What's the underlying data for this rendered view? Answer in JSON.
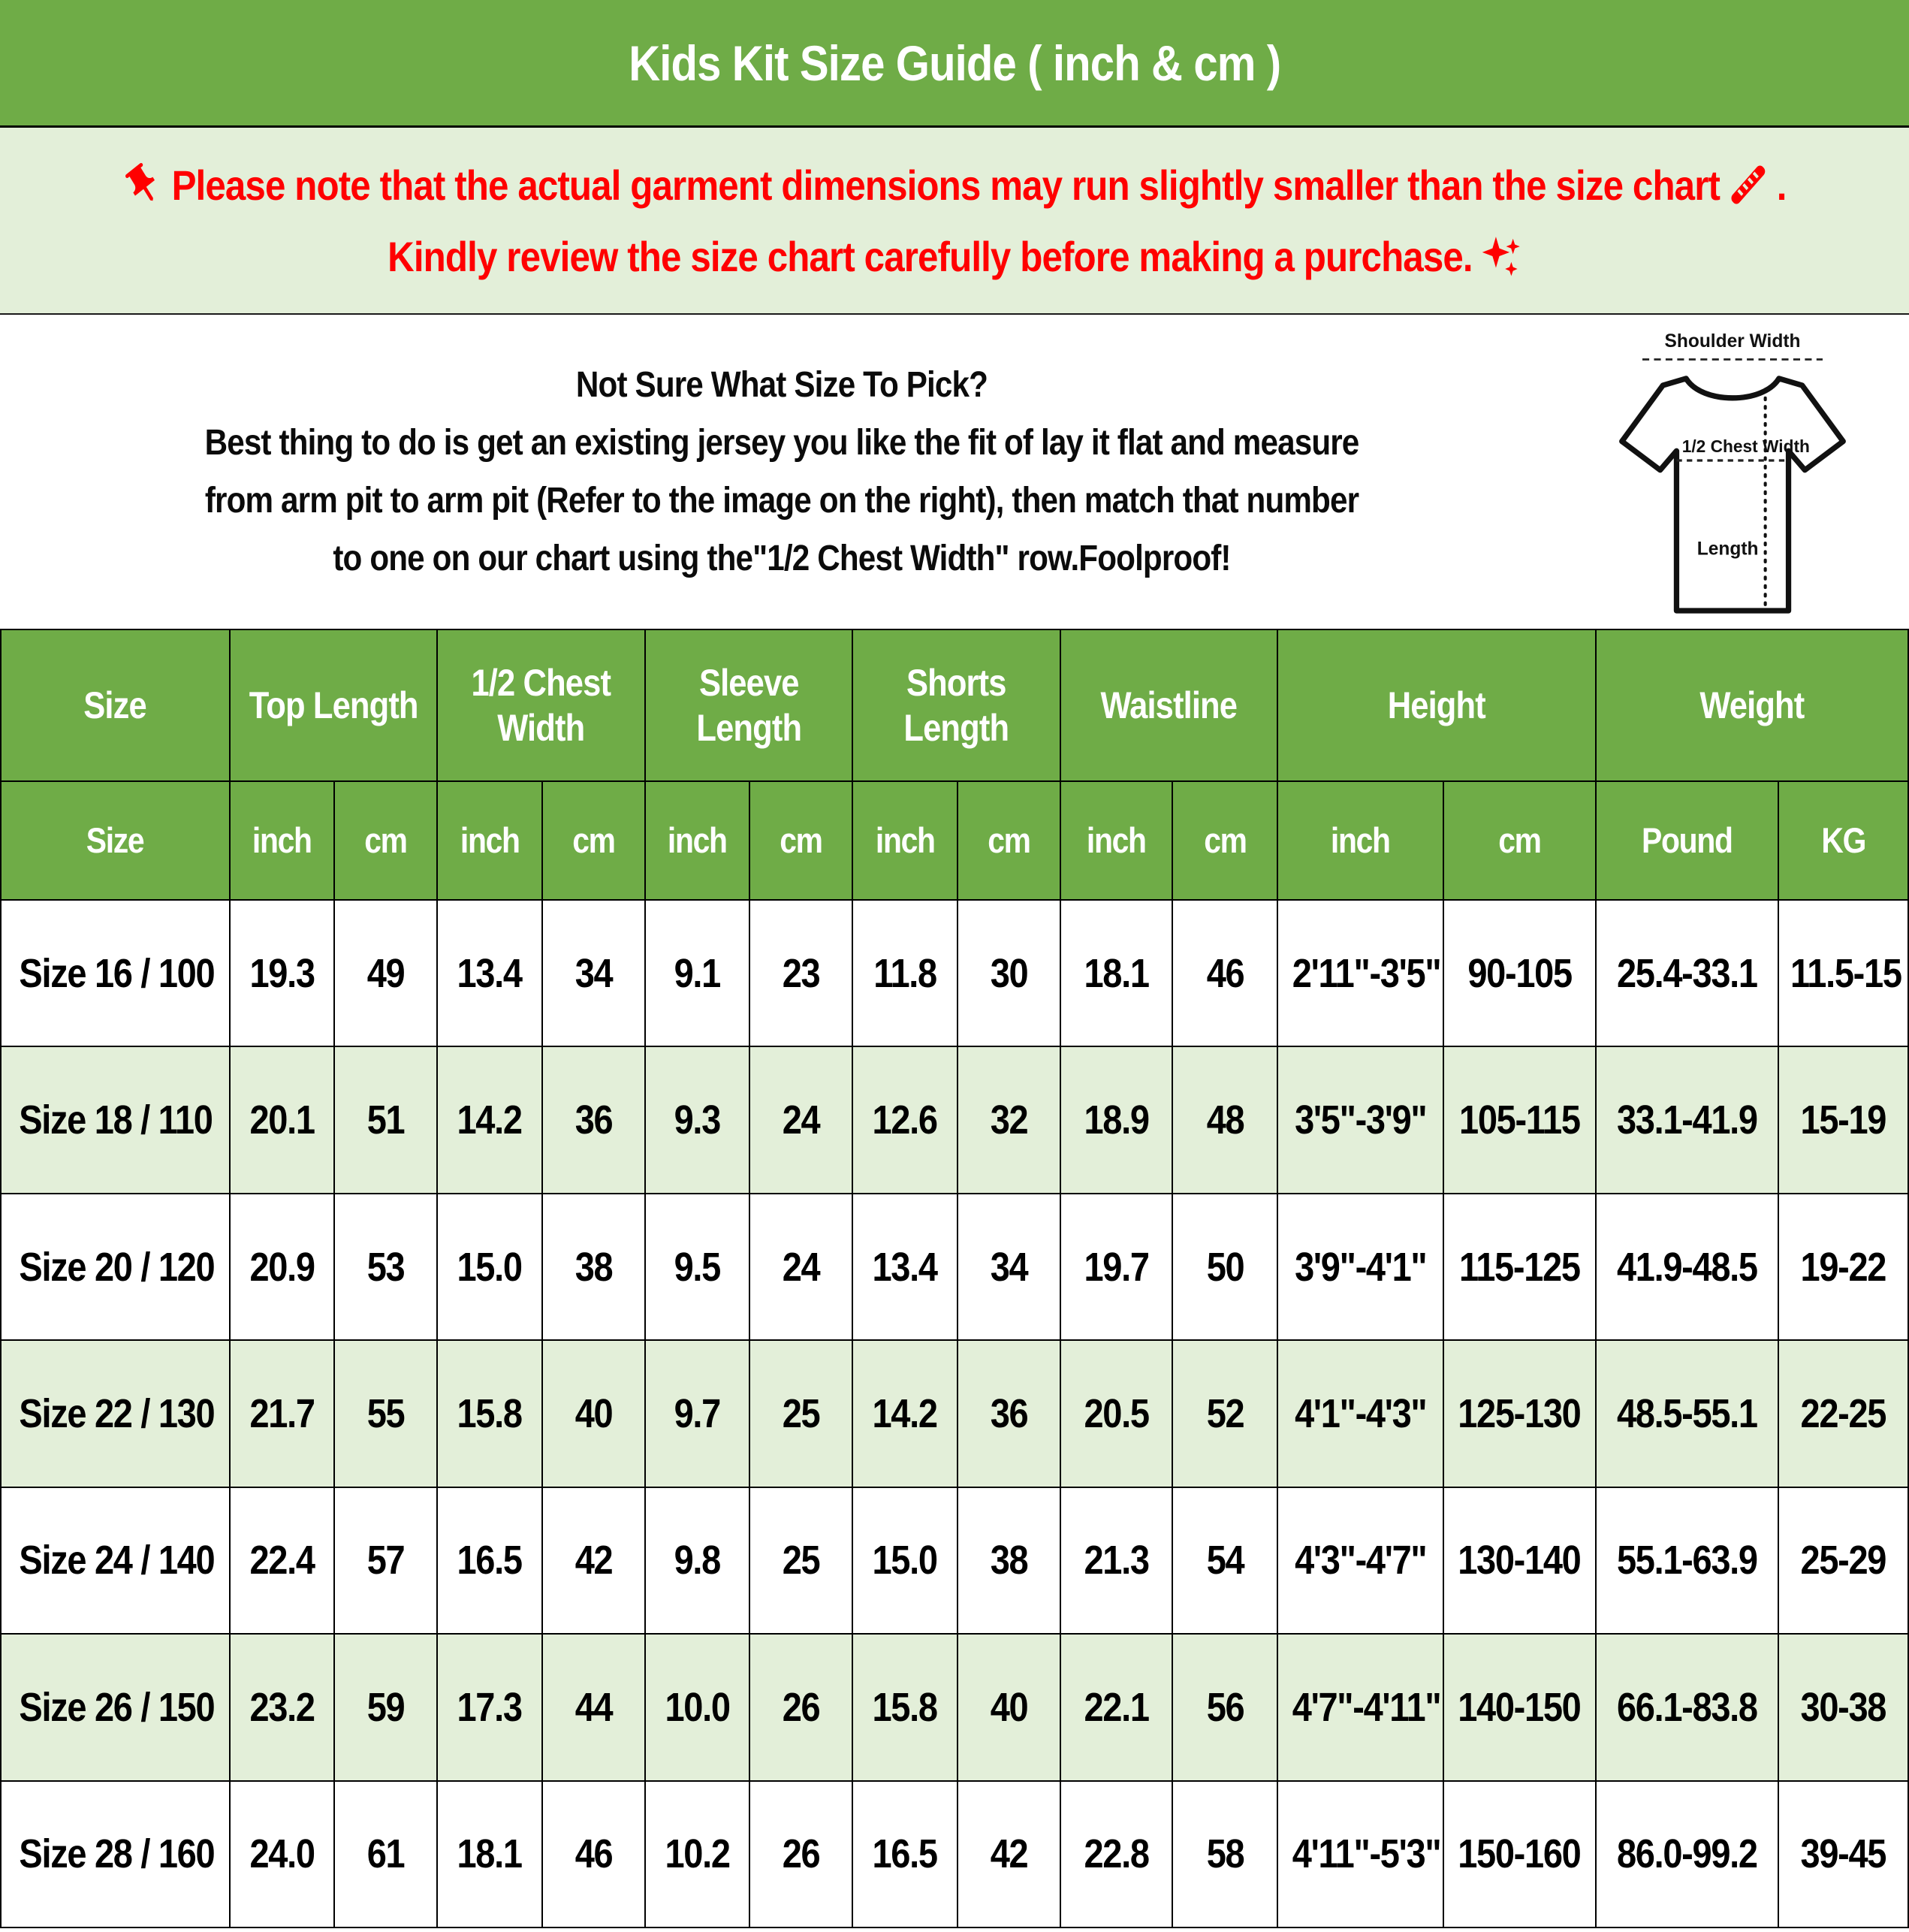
{
  "title": "Kids Kit Size Guide ( inch & cm )",
  "colors": {
    "header_green": "#6FAC47",
    "light_green": "#E3EFD9",
    "alert_red": "#FF0000",
    "text_black": "#000000",
    "white": "#FFFFFF"
  },
  "notice": {
    "line1": "Please note that the actual garment dimensions may run slightly smaller than the size chart",
    "line1_end": ".",
    "line2": "Kindly review the size chart carefully before making a purchase.",
    "icons": {
      "pin": "pushpin-icon",
      "ruler": "ruler-icon",
      "sparkles": "sparkles-icon"
    }
  },
  "size_help": {
    "heading": "Not Sure What Size To Pick?",
    "line1": "Best thing to do is get an existing jersey you like the fit of lay it flat and measure",
    "line2": "from arm pit to arm pit (Refer to the image on the right), then match that number",
    "line3": "to one on our chart using the\"1/2 Chest Width\" row.Foolproof!"
  },
  "diagram": {
    "shoulder_label": "Shoulder Width",
    "chest_label": "1/2 Chest Width",
    "length_label": "Length"
  },
  "table": {
    "groups": [
      {
        "label": "Size",
        "span": 1
      },
      {
        "label": "Top Length",
        "span": 2
      },
      {
        "label": "1/2 Chest Width",
        "span": 2
      },
      {
        "label": "Sleeve Length",
        "span": 2
      },
      {
        "label": "Shorts Length",
        "span": 2
      },
      {
        "label": "Waistline",
        "span": 2
      },
      {
        "label": "Height",
        "span": 2
      },
      {
        "label": "Weight",
        "span": 2
      }
    ],
    "subheaders": [
      "Size",
      "inch",
      "cm",
      "inch",
      "cm",
      "inch",
      "cm",
      "inch",
      "cm",
      "inch",
      "cm",
      "inch",
      "cm",
      "Pound",
      "KG"
    ],
    "rows": [
      [
        "Size 16 / 100",
        "19.3",
        "49",
        "13.4",
        "34",
        "9.1",
        "23",
        "11.8",
        "30",
        "18.1",
        "46",
        "2'11\"-3'5\"",
        "90-105",
        "25.4-33.1",
        "11.5-15"
      ],
      [
        "Size 18 / 110",
        "20.1",
        "51",
        "14.2",
        "36",
        "9.3",
        "24",
        "12.6",
        "32",
        "18.9",
        "48",
        "3'5\"-3'9\"",
        "105-115",
        "33.1-41.9",
        "15-19"
      ],
      [
        "Size 20 / 120",
        "20.9",
        "53",
        "15.0",
        "38",
        "9.5",
        "24",
        "13.4",
        "34",
        "19.7",
        "50",
        "3'9\"-4'1\"",
        "115-125",
        "41.9-48.5",
        "19-22"
      ],
      [
        "Size 22 / 130",
        "21.7",
        "55",
        "15.8",
        "40",
        "9.7",
        "25",
        "14.2",
        "36",
        "20.5",
        "52",
        "4'1\"-4'3\"",
        "125-130",
        "48.5-55.1",
        "22-25"
      ],
      [
        "Size 24 / 140",
        "22.4",
        "57",
        "16.5",
        "42",
        "9.8",
        "25",
        "15.0",
        "38",
        "21.3",
        "54",
        "4'3\"-4'7\"",
        "130-140",
        "55.1-63.9",
        "25-29"
      ],
      [
        "Size 26 / 150",
        "23.2",
        "59",
        "17.3",
        "44",
        "10.0",
        "26",
        "15.8",
        "40",
        "22.1",
        "56",
        "4'7\"-4'11\"",
        "140-150",
        "66.1-83.8",
        "30-38"
      ],
      [
        "Size 28 / 160",
        "24.0",
        "61",
        "18.1",
        "46",
        "10.2",
        "26",
        "16.5",
        "42",
        "22.8",
        "58",
        "4'11\"-5'3\"",
        "150-160",
        "86.0-99.2",
        "39-45"
      ]
    ]
  }
}
